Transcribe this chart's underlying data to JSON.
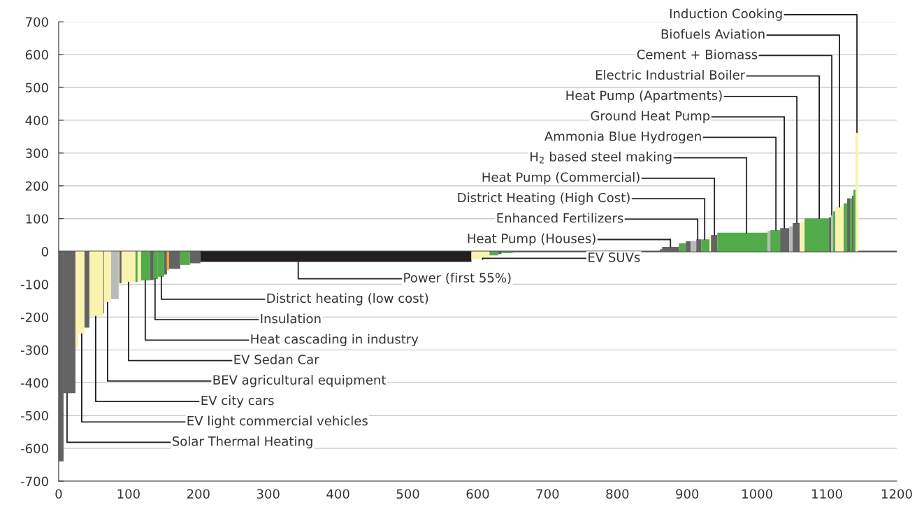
{
  "chart_data": {
    "type": "histogram",
    "bins": [
      0,
      7,
      24,
      28,
      37,
      44,
      64,
      65,
      75,
      86,
      87,
      90,
      110,
      113,
      118,
      131,
      136,
      142,
      151,
      155,
      158,
      174,
      188,
      203,
      591,
      617,
      629,
      634,
      650,
      861,
      864,
      888,
      898,
      905,
      913,
      920,
      932,
      934,
      943,
      1015,
      1019,
      1033,
      1046,
      1051,
      1061,
      1068,
      1103,
      1106,
      1109,
      1112,
      1124,
      1129,
      1133,
      1136,
      1138,
      1141,
      1145
    ],
    "values": [
      -640,
      -432,
      -294,
      -251,
      -232,
      -198,
      -189,
      -155,
      -145,
      -137,
      -97,
      -94,
      -93,
      -92,
      -88,
      -87,
      -84,
      -77,
      -70,
      -57,
      -53,
      -41,
      -36,
      -32,
      -24,
      -12,
      -8,
      -5,
      null,
      7,
      14,
      25,
      31,
      32,
      37,
      37,
      45,
      50,
      57,
      63,
      65,
      71,
      76,
      87,
      91,
      101,
      104,
      112,
      122,
      136,
      147,
      162,
      162,
      170,
      188,
      363
    ],
    "colors": [
      "#636363",
      "#636363",
      "#f9f3b0",
      "#f9f3b0",
      "#636363",
      "#f9f3b0",
      "#636363",
      "#f9f3b0",
      "#b9bbbb",
      "#f9f3b0",
      "#636363",
      "#f9f3b0",
      "#52ab4a",
      "#f9f3b0",
      "#52ab4a",
      "#636363",
      "#52ab4a",
      "#52ab4a",
      "#636363",
      "#f6a623",
      "#636363",
      "#52ab4a",
      "#636363",
      "#231f20",
      "#f9f3b0",
      "#52ab4a",
      "#636363",
      "#52ab4a",
      null,
      "#636363",
      "#636363",
      "#52ab4a",
      "#636363",
      "#b9bbbb",
      "#636363",
      "#52ab4a",
      "#f9f3b0",
      "#636363",
      "#52ab4a",
      "#b9bbbb",
      "#52ab4a",
      "#636363",
      "#b9bbbb",
      "#636363",
      "#f9f3b0",
      "#52ab4a",
      "#636363",
      "#b9bbbb",
      "#52ab4a",
      "#f9f3b0",
      "#52ab4a",
      "#636363",
      "#52ab4a",
      "#636363",
      "#52ab4a",
      "#f9f3b0"
    ],
    "xlim": [
      0,
      1200
    ],
    "ylim": [
      -700,
      700
    ],
    "xticks": [
      0,
      100,
      200,
      300,
      400,
      500,
      600,
      700,
      800,
      900,
      1000,
      1100,
      1200
    ],
    "yticks": [
      -700,
      -600,
      -500,
      -400,
      -300,
      -200,
      -100,
      0,
      100,
      200,
      300,
      400,
      500,
      600,
      700
    ],
    "grid": "y",
    "ref_lines": [
      {
        "axis": "y",
        "value": 0,
        "color": "#555555"
      }
    ],
    "annotations": [
      {
        "text": "Induction Cooking",
        "x": 1143,
        "y": 363
      },
      {
        "text": "Biofuels Aviation",
        "x": 1118,
        "y": 136
      },
      {
        "text": "Cement + Biomass",
        "x": 1107,
        "y": 112
      },
      {
        "text": "Electric Industrial Boiler",
        "x": 1089,
        "y": 101
      },
      {
        "text": "Heat Pump (Apartments)",
        "x": 1057,
        "y": 87
      },
      {
        "text": "Ground Heat Pump",
        "x": 1039,
        "y": 71
      },
      {
        "text": "Ammonia Blue Hydrogen",
        "x": 1027,
        "y": 65
      },
      {
        "text": "H$_{2}$ based steel making",
        "x": 985,
        "y": 57
      },
      {
        "text": "Heat Pump (Commercial)",
        "x": 939,
        "y": 50
      },
      {
        "text": "District Heating (High Cost)",
        "x": 925,
        "y": 37
      },
      {
        "text": "Enhanced Fertilizers",
        "x": 915,
        "y": 37
      },
      {
        "text": "Heat Pump (Houses)",
        "x": 876,
        "y": 14
      },
      {
        "text": "EV SUVs",
        "x": 607,
        "y": -24
      },
      {
        "text": "Power (first 55%)",
        "x": 343,
        "y": -32
      },
      {
        "text": "District heating (low cost)",
        "x": 147,
        "y": -77
      },
      {
        "text": "Insulation",
        "x": 138,
        "y": -84
      },
      {
        "text": "Heat cascading in industry",
        "x": 124,
        "y": -88
      },
      {
        "text": "EV Sedan Car",
        "x": 100,
        "y": -94
      },
      {
        "text": "BEV agricultural equipment",
        "x": 70,
        "y": -155
      },
      {
        "text": "EV city cars",
        "x": 53,
        "y": -198
      },
      {
        "text": "EV light commercial vehicles",
        "x": 33,
        "y": -251
      },
      {
        "text": "Solar Thermal Heating",
        "x": 12,
        "y": -432
      }
    ]
  }
}
